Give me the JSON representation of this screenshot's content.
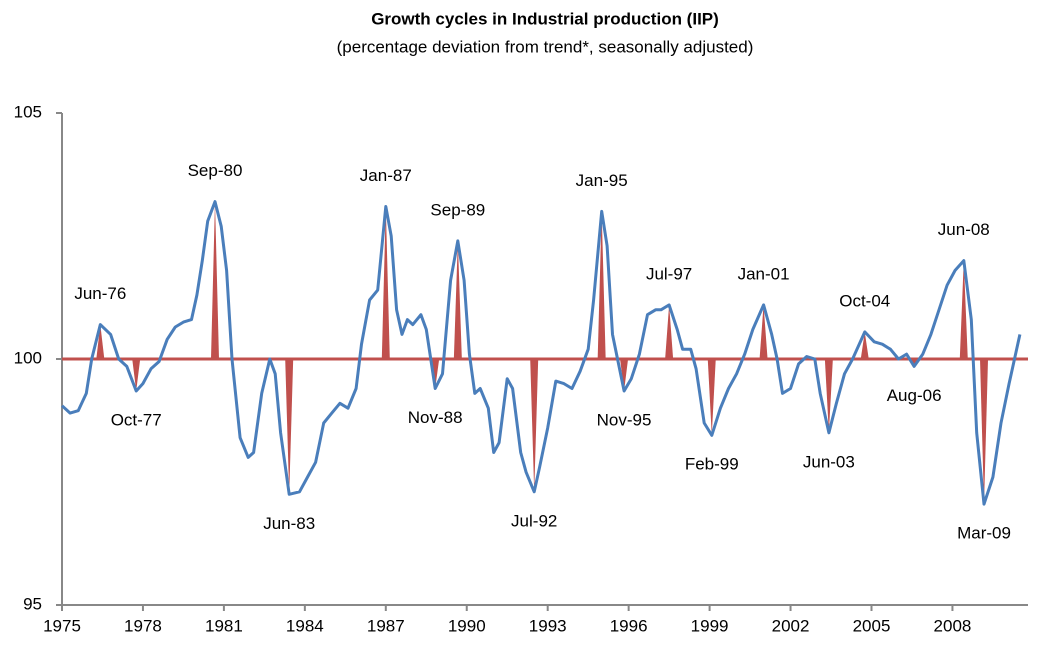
{
  "chart_data": {
    "type": "line",
    "title": "Growth cycles  in Industrial production (IIP)",
    "subtitle": "(percentage deviation from trend*,  seasonally adjusted)",
    "x": [
      1975.0,
      1975.3,
      1975.6,
      1975.9,
      1976.1,
      1976.42,
      1976.8,
      1977.1,
      1977.4,
      1977.75,
      1978.0,
      1978.3,
      1978.6,
      1978.9,
      1979.2,
      1979.5,
      1979.8,
      1980.0,
      1980.2,
      1980.4,
      1980.67,
      1980.9,
      1981.1,
      1981.3,
      1981.6,
      1981.9,
      1982.1,
      1982.4,
      1982.7,
      1982.9,
      1983.1,
      1983.42,
      1983.8,
      1984.1,
      1984.4,
      1984.7,
      1985.0,
      1985.3,
      1985.6,
      1985.9,
      1986.1,
      1986.4,
      1986.7,
      1987.0,
      1987.2,
      1987.4,
      1987.6,
      1987.8,
      1988.0,
      1988.3,
      1988.5,
      1988.83,
      1989.1,
      1989.4,
      1989.67,
      1989.9,
      1990.1,
      1990.3,
      1990.5,
      1990.8,
      1991.0,
      1991.2,
      1991.5,
      1991.7,
      1992.0,
      1992.2,
      1992.5,
      1992.7,
      1993.0,
      1993.3,
      1993.6,
      1993.9,
      1994.2,
      1994.5,
      1994.7,
      1995.0,
      1995.2,
      1995.4,
      1995.83,
      1996.1,
      1996.4,
      1996.7,
      1997.0,
      1997.2,
      1997.5,
      1997.8,
      1998.0,
      1998.3,
      1998.5,
      1998.8,
      1999.08,
      1999.4,
      1999.7,
      2000.0,
      2000.3,
      2000.6,
      2001.0,
      2001.3,
      2001.5,
      2001.7,
      2002.0,
      2002.3,
      2002.6,
      2002.9,
      2003.1,
      2003.42,
      2003.7,
      2004.0,
      2004.3,
      2004.75,
      2005.1,
      2005.4,
      2005.7,
      2006.0,
      2006.3,
      2006.58,
      2006.9,
      2007.2,
      2007.5,
      2007.8,
      2008.1,
      2008.42,
      2008.7,
      2008.9,
      2009.17,
      2009.5,
      2009.8,
      2010.1,
      2010.5
    ],
    "series": [
      {
        "color": "#4a7ebb",
        "values": [
          99.05,
          98.9,
          98.95,
          99.3,
          100.0,
          100.7,
          100.5,
          100.0,
          99.85,
          99.35,
          99.5,
          99.8,
          99.95,
          100.4,
          100.65,
          100.75,
          100.8,
          101.3,
          102.0,
          102.8,
          103.2,
          102.7,
          101.8,
          100.0,
          98.4,
          98.0,
          98.1,
          99.3,
          100.0,
          99.7,
          98.5,
          97.25,
          97.3,
          97.6,
          97.9,
          98.7,
          98.9,
          99.1,
          99.0,
          99.4,
          100.3,
          101.2,
          101.4,
          103.1,
          102.5,
          101.0,
          100.5,
          100.8,
          100.7,
          100.9,
          100.6,
          99.4,
          99.7,
          101.6,
          102.4,
          101.6,
          100.1,
          99.3,
          99.4,
          99.0,
          98.1,
          98.3,
          99.6,
          99.4,
          98.1,
          97.7,
          97.3,
          97.8,
          98.6,
          99.55,
          99.5,
          99.4,
          99.75,
          100.2,
          101.2,
          103.0,
          102.3,
          100.5,
          99.35,
          99.6,
          100.1,
          100.9,
          101.0,
          101.0,
          101.1,
          100.6,
          100.2,
          100.2,
          99.8,
          98.7,
          98.45,
          99.0,
          99.4,
          99.7,
          100.1,
          100.6,
          101.1,
          100.5,
          100.0,
          99.3,
          99.4,
          99.9,
          100.05,
          100.0,
          99.3,
          98.5,
          99.1,
          99.7,
          100.0,
          100.55,
          100.35,
          100.3,
          100.2,
          100.0,
          100.1,
          99.85,
          100.1,
          100.5,
          101.0,
          101.5,
          101.8,
          102.0,
          100.8,
          98.5,
          97.05,
          97.6,
          98.7,
          99.5,
          100.5
        ]
      }
    ],
    "annotations": [
      {
        "text": "Jun-76",
        "x": 1976.42,
        "y": 100.7
      },
      {
        "text": "Oct-77",
        "x": 1977.75,
        "y": 99.35
      },
      {
        "text": "Sep-80",
        "x": 1980.67,
        "y": 103.2
      },
      {
        "text": "Jun-83",
        "x": 1983.42,
        "y": 97.25
      },
      {
        "text": "Jan-87",
        "x": 1987.0,
        "y": 103.1
      },
      {
        "text": "Nov-88",
        "x": 1988.83,
        "y": 99.4
      },
      {
        "text": "Sep-89",
        "x": 1989.67,
        "y": 102.4
      },
      {
        "text": "Jul-92",
        "x": 1992.5,
        "y": 97.3
      },
      {
        "text": "Jan-95",
        "x": 1995.0,
        "y": 103.0
      },
      {
        "text": "Nov-95",
        "x": 1995.83,
        "y": 99.35
      },
      {
        "text": "Jul-97",
        "x": 1997.5,
        "y": 101.1
      },
      {
        "text": "Feb-99",
        "x": 1999.08,
        "y": 98.45
      },
      {
        "text": "Jan-01",
        "x": 2001.0,
        "y": 101.1
      },
      {
        "text": "Jun-03",
        "x": 2003.42,
        "y": 98.5
      },
      {
        "text": "Oct-04",
        "x": 2004.75,
        "y": 100.55
      },
      {
        "text": "Aug-06",
        "x": 2006.58,
        "y": 99.85
      },
      {
        "text": "Jun-08",
        "x": 2008.42,
        "y": 102.0
      },
      {
        "text": "Mar-09",
        "x": 2009.17,
        "y": 97.05
      }
    ],
    "reference_value": 100,
    "reference_color": "#c0504d",
    "xlim": [
      1975,
      2010.8
    ],
    "xticks": [
      1975,
      1978,
      1981,
      1984,
      1987,
      1990,
      1993,
      1996,
      1999,
      2002,
      2005,
      2008
    ],
    "ylim": [
      95,
      105
    ],
    "yticks": [
      95,
      100,
      105
    ]
  }
}
